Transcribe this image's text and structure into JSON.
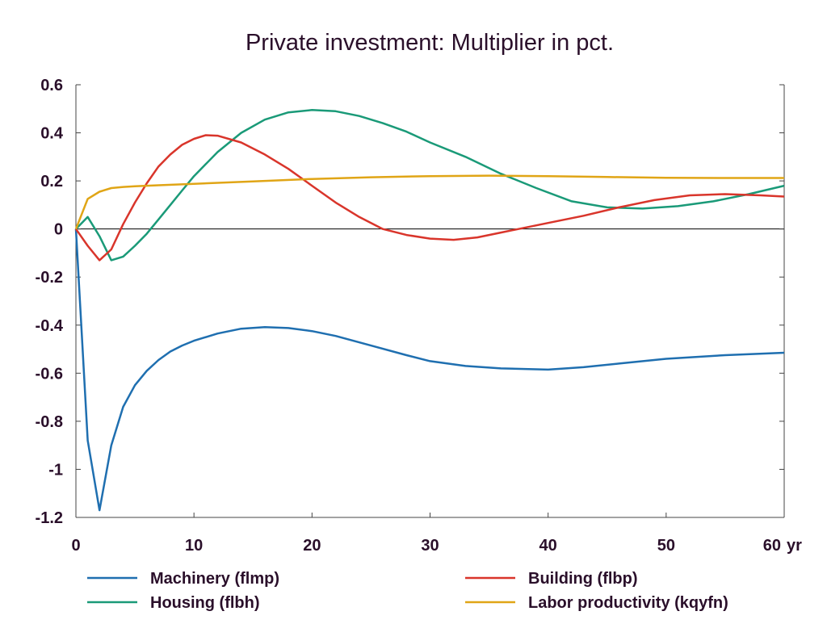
{
  "chart_data": {
    "type": "line",
    "title": "Private investment: Multiplier in pct.",
    "xlabel": "",
    "ylabel": "",
    "x_unit_label": "yr",
    "xlim": [
      0,
      60
    ],
    "ylim": [
      -1.2,
      0.6
    ],
    "x_ticks": [
      0,
      10,
      20,
      30,
      40,
      50,
      60
    ],
    "y_ticks": [
      0.6,
      0.4,
      0.2,
      0,
      -0.2,
      -0.4,
      -0.6,
      -0.8,
      -1,
      -1.2
    ],
    "x_tick_labels": [
      "0",
      "10",
      "20",
      "30",
      "40",
      "50",
      "60"
    ],
    "y_tick_labels": [
      "0.6",
      "0.4",
      "0.2",
      "0",
      "-0.2",
      "-0.4",
      "-0.6",
      "-0.8",
      "-1",
      "-1.2"
    ],
    "grid": false,
    "zero_line": true,
    "legend_position": "bottom",
    "series": [
      {
        "name": "Machinery (flmp)",
        "color": "#1f6fb0",
        "points": [
          [
            0,
            0
          ],
          [
            1,
            -0.88
          ],
          [
            2,
            -1.17
          ],
          [
            3,
            -0.9
          ],
          [
            4,
            -0.74
          ],
          [
            5,
            -0.65
          ],
          [
            6,
            -0.59
          ],
          [
            7,
            -0.545
          ],
          [
            8,
            -0.51
          ],
          [
            9,
            -0.485
          ],
          [
            10,
            -0.465
          ],
          [
            12,
            -0.435
          ],
          [
            14,
            -0.415
          ],
          [
            16,
            -0.408
          ],
          [
            18,
            -0.412
          ],
          [
            20,
            -0.425
          ],
          [
            22,
            -0.445
          ],
          [
            25,
            -0.485
          ],
          [
            28,
            -0.525
          ],
          [
            30,
            -0.55
          ],
          [
            33,
            -0.57
          ],
          [
            36,
            -0.58
          ],
          [
            40,
            -0.585
          ],
          [
            43,
            -0.575
          ],
          [
            46,
            -0.56
          ],
          [
            50,
            -0.54
          ],
          [
            55,
            -0.525
          ],
          [
            60,
            -0.515
          ]
        ]
      },
      {
        "name": "Housing (flbh)",
        "color": "#1a9a78",
        "points": [
          [
            0,
            0
          ],
          [
            1,
            0.05
          ],
          [
            2,
            -0.03
          ],
          [
            3,
            -0.13
          ],
          [
            4,
            -0.115
          ],
          [
            5,
            -0.07
          ],
          [
            6,
            -0.02
          ],
          [
            7,
            0.04
          ],
          [
            8,
            0.1
          ],
          [
            9,
            0.16
          ],
          [
            10,
            0.22
          ],
          [
            12,
            0.32
          ],
          [
            14,
            0.4
          ],
          [
            16,
            0.455
          ],
          [
            18,
            0.485
          ],
          [
            20,
            0.495
          ],
          [
            22,
            0.49
          ],
          [
            24,
            0.47
          ],
          [
            26,
            0.44
          ],
          [
            28,
            0.405
          ],
          [
            30,
            0.36
          ],
          [
            33,
            0.3
          ],
          [
            36,
            0.23
          ],
          [
            39,
            0.17
          ],
          [
            42,
            0.115
          ],
          [
            45,
            0.09
          ],
          [
            48,
            0.085
          ],
          [
            51,
            0.095
          ],
          [
            54,
            0.115
          ],
          [
            57,
            0.145
          ],
          [
            60,
            0.18
          ]
        ]
      },
      {
        "name": "Building (flbp)",
        "color": "#d9352b",
        "points": [
          [
            0,
            0
          ],
          [
            1,
            -0.07
          ],
          [
            2,
            -0.13
          ],
          [
            3,
            -0.085
          ],
          [
            4,
            0.02
          ],
          [
            5,
            0.11
          ],
          [
            6,
            0.19
          ],
          [
            7,
            0.26
          ],
          [
            8,
            0.31
          ],
          [
            9,
            0.35
          ],
          [
            10,
            0.375
          ],
          [
            11,
            0.39
          ],
          [
            12,
            0.388
          ],
          [
            14,
            0.36
          ],
          [
            16,
            0.31
          ],
          [
            18,
            0.25
          ],
          [
            20,
            0.18
          ],
          [
            22,
            0.11
          ],
          [
            24,
            0.05
          ],
          [
            26,
            0.0
          ],
          [
            28,
            -0.025
          ],
          [
            30,
            -0.04
          ],
          [
            32,
            -0.045
          ],
          [
            34,
            -0.035
          ],
          [
            36,
            -0.015
          ],
          [
            38,
            0.005
          ],
          [
            40,
            0.025
          ],
          [
            43,
            0.055
          ],
          [
            46,
            0.09
          ],
          [
            49,
            0.12
          ],
          [
            52,
            0.14
          ],
          [
            55,
            0.145
          ],
          [
            58,
            0.14
          ],
          [
            60,
            0.135
          ]
        ]
      },
      {
        "name": "Labor productivity (kqyfn)",
        "color": "#e0a516",
        "points": [
          [
            0,
            0
          ],
          [
            1,
            0.125
          ],
          [
            2,
            0.155
          ],
          [
            3,
            0.17
          ],
          [
            4,
            0.175
          ],
          [
            5,
            0.178
          ],
          [
            7,
            0.182
          ],
          [
            10,
            0.188
          ],
          [
            15,
            0.198
          ],
          [
            20,
            0.208
          ],
          [
            25,
            0.215
          ],
          [
            30,
            0.22
          ],
          [
            35,
            0.222
          ],
          [
            40,
            0.22
          ],
          [
            45,
            0.216
          ],
          [
            50,
            0.213
          ],
          [
            55,
            0.212
          ],
          [
            60,
            0.212
          ]
        ]
      }
    ]
  }
}
